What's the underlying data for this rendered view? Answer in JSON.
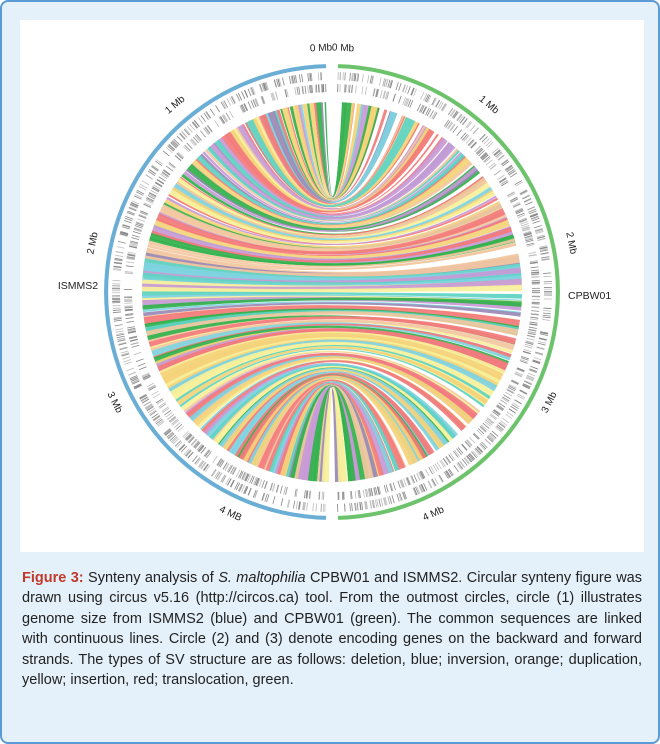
{
  "figure": {
    "genomes": [
      {
        "name": "ISMMS2",
        "color": "#6aaed6",
        "size_mb": 4.6,
        "ticks": [
          "0 Mb",
          "1 Mb",
          "2 Mb",
          "3 Mb",
          "4 MB"
        ]
      },
      {
        "name": "CPBW01",
        "color": "#6cc36b",
        "size_mb": 4.6,
        "ticks": [
          "0 Mb",
          "1 Mb",
          "2 Mb",
          "3 Mb",
          "4 Mb"
        ]
      }
    ],
    "link_colors": [
      "#f37a7a",
      "#f4d37a",
      "#f7f09a",
      "#5ed3c4",
      "#9b8ab6",
      "#c79ad6",
      "#f2c7a0",
      "#33b14c",
      "#7fd3e0"
    ]
  },
  "caption": {
    "label": "Figure 3:",
    "part1": " Synteny analysis of ",
    "species": "S. maltophilia",
    "part2": " CPBW01 and ISMMS2. Circular synteny figure was drawn using circus v5.16 (http://circos.ca) tool. From the outmost circles, circle (1) illustrates genome size from ISMMS2 (blue) and CPBW01 (green). The common sequences are linked with continuous lines. Circle (2) and (3) denote encoding genes on the backward and forward strands. The types of SV structure are as follows: deletion, blue; inversion, orange; duplication, yellow; insertion, red; translocation, green."
  }
}
